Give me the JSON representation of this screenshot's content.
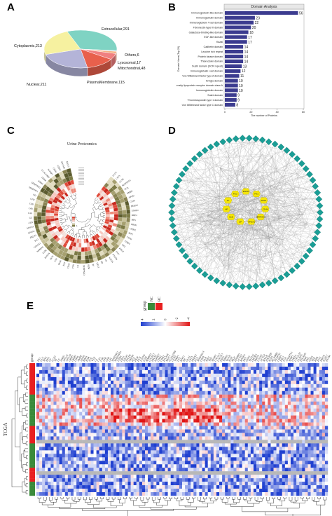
{
  "panels": {
    "A": "A",
    "B": "B",
    "C": "C",
    "D": "D",
    "E": "E"
  },
  "pie": {
    "slices": [
      {
        "label": "Extracellular,291",
        "value": 291,
        "color": "#7fd3c3"
      },
      {
        "label": "Others,6",
        "value": 6,
        "color": "#c9d6f0"
      },
      {
        "label": "Lysosomal,17",
        "value": 17,
        "color": "#f4b183"
      },
      {
        "label": "Mitochondrial,48",
        "value": 48,
        "color": "#f08080"
      },
      {
        "label": "PlasmaMembrane,115",
        "value": 115,
        "color": "#e8604c"
      },
      {
        "label": "Nuclear,211",
        "value": 211,
        "color": "#b4b4d8"
      },
      {
        "label": "Cytoplasmic,213",
        "value": 213,
        "color": "#f6f1a0"
      }
    ]
  },
  "domain_chart": {
    "title": "Domain Analysis",
    "ylabel": "Domain Name(Top 20)",
    "xlabel": "The number of Proteins",
    "bars": [
      {
        "label": "Immunoglobulin-like domain",
        "value": 56
      },
      {
        "label": "Immunoglobulin domain",
        "value": 23
      },
      {
        "label": "Immunoglobulin V-set domain",
        "value": 22
      },
      {
        "label": "Fibronectin type III domain",
        "value": 20
      },
      {
        "label": "Galactose-binding-like domain",
        "value": 18
      },
      {
        "label": "EGF-like domain",
        "value": 17
      },
      {
        "label": "Kazal",
        "value": 17
      },
      {
        "label": "Cadherin domain",
        "value": 14
      },
      {
        "label": "Leucine rich repeat",
        "value": 14
      },
      {
        "label": "Protein kinase domain",
        "value": 14
      },
      {
        "label": "Thioredoxin domain",
        "value": 14
      },
      {
        "label": "Sushi domain (SCR repeat)",
        "value": 13
      },
      {
        "label": "Immunoglobulin I-set domain",
        "value": 12
      },
      {
        "label": "Von Willebrand factor type A domain",
        "value": 11
      },
      {
        "label": "Kringle domain",
        "value": 10
      },
      {
        "label": "Low-density lipoprotein receptor domain class A",
        "value": 10
      },
      {
        "label": "Immunoglobulin domain",
        "value": 10
      },
      {
        "label": "Sushi domain",
        "value": 9
      },
      {
        "label": "Thrombospondin type 1 domain",
        "value": 9
      },
      {
        "label": "Von Willebrand factor type C domain",
        "value": 8
      }
    ],
    "xticks": [
      "0",
      "20",
      "40",
      "60"
    ]
  },
  "circ": {
    "title": "Urine Proteomics",
    "genes": [
      "GLO1",
      "CST3",
      "LCN2",
      "SERPINA1",
      "FGA",
      "AMBP",
      "APOD",
      "CD44",
      "PRDX2",
      "UMOD",
      "RBP4",
      "HPX",
      "ORM1",
      "ORM2",
      "SPP1",
      "CTSD",
      "TIMP1",
      "GP2",
      "KNG1",
      "CLU",
      "PTGDS",
      "AZGP1",
      "CP",
      "HP",
      "LRG1",
      "TF",
      "B2M",
      "SERPINA3",
      "C3",
      "VTN",
      "CD59",
      "EGF",
      "PIGR",
      "FN1",
      "DCN",
      "POSTN",
      "LUM",
      "MMRN1",
      "COL6A1",
      "PLG",
      "FBLN1",
      "APOA1",
      "APOA4",
      "ALB",
      "GC",
      "C4A",
      "C4B",
      "CFB",
      "CFH",
      "CFI",
      "SERPINC1",
      "SERPIND1",
      "AHSG",
      "ITIH4",
      "LGALS3BP",
      "IGFBP7",
      "CDH1",
      "CDH2",
      "EPCAM",
      "MUC1"
    ],
    "legend_hi": "1",
    "legend_lo": "-1"
  },
  "network": {
    "hub_genes": [
      "EGFR",
      "FN1",
      "SPP1",
      "CD44",
      "SERPINA1",
      "APOA1",
      "CP",
      "ALB",
      "HP",
      "TF",
      "PLG"
    ]
  },
  "heatmap": {
    "group_title": "group",
    "groups": [
      {
        "name": "NC",
        "color": "#3a8a3a"
      },
      {
        "name": "BC",
        "color": "#e82020"
      }
    ],
    "scale_ticks": [
      "4",
      "2",
      "0",
      "-2",
      "-4"
    ],
    "row_axis": "TCGA",
    "group_col_label": "group",
    "columns": [
      "FN1",
      "CLU",
      "SPP1",
      "HPX",
      "CP",
      "LCN2",
      "TF",
      "GC",
      "AHSG",
      "APOA1",
      "APOA4",
      "ORM1",
      "ORM2",
      "CD44",
      "AMBP",
      "APOD",
      "RBP4",
      "B2M",
      "PLG",
      "VTN",
      "C3",
      "C4A",
      "C4B",
      "CFB",
      "CFH",
      "CFI",
      "SERPINC1",
      "SERPIND1",
      "ITIH4",
      "LRG1",
      "AZGP1",
      "PTGDS",
      "UMOD",
      "EGF",
      "PIGR",
      "DCN",
      "POSTN",
      "LUM",
      "MMRN1",
      "COL6A1",
      "FBLN1",
      "IGFBP7",
      "CDH1",
      "CDH2",
      "EPCAM",
      "MUC1",
      "LGALS3BP",
      "CTSD",
      "TIMP1",
      "GP2",
      "KNG1",
      "HP",
      "GLO1",
      "CST3",
      "PRDX2",
      "FGA",
      "SERPINA3",
      "CD59",
      "ALB",
      "NID1",
      "TNC",
      "SPARC",
      "COL1A1",
      "COL3A1",
      "FBN1",
      "THBS1",
      "VCAN",
      "BGN",
      "MGP",
      "EFEMP1",
      "ACTA2",
      "MYH11",
      "DES",
      "CNN1",
      "TAGLN",
      "LMOD1",
      "SMTN",
      "CALD1",
      "ACTG2",
      "MYLK",
      "PDGFRB",
      "RGS5",
      "KCNMB1",
      "SYNPO2",
      "CSRP1",
      "FHL1",
      "PLN",
      "ANGPTL1",
      "SFRP1",
      "ITM2A",
      "COL21A1",
      "CLDN5",
      "PECAM1",
      "VWF",
      "ENG",
      "CD34",
      "TEK",
      "KDR",
      "FLT1",
      "EMCN",
      "EGFL7",
      "ESAM"
    ]
  }
}
